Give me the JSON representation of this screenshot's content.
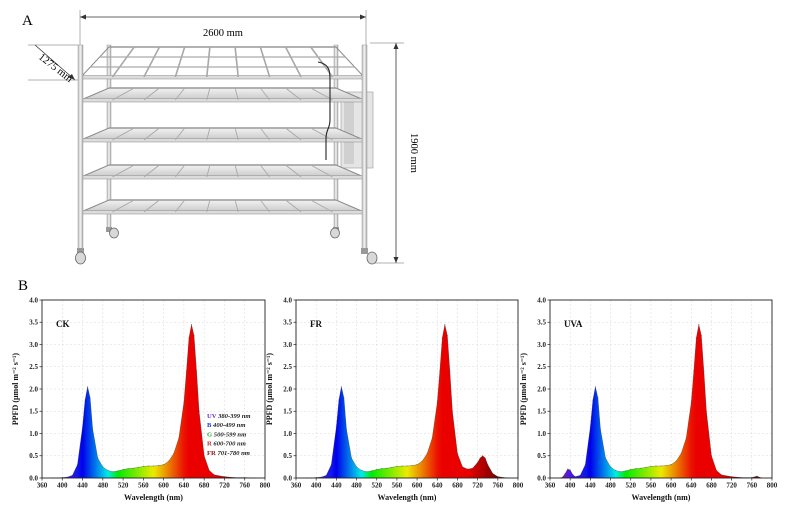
{
  "figure": {
    "panel_a_label": "A",
    "panel_b_label": "B",
    "rack": {
      "width_label": "2600 mm",
      "depth_label": "1275 mm",
      "height_label": "1900 mm"
    }
  },
  "legend": [
    {
      "band": "UV",
      "range": "380-399 nm",
      "color": "#6a2fc4"
    },
    {
      "band": "B",
      "range": "400-499 nm",
      "color": "#1c3fd6"
    },
    {
      "band": "G",
      "range": "500-599 nm",
      "color": "#2ea830"
    },
    {
      "band": "R",
      "range": "600-700 nm",
      "color": "#d42020"
    },
    {
      "band": "FR",
      "range": "701-780 nm",
      "color": "#8a1010"
    }
  ],
  "chart_data": [
    {
      "type": "area",
      "title": "CK",
      "xlabel": "Wavelength (nm)",
      "ylabel": "PPFD (μmol m⁻² s⁻¹)",
      "xlim": [
        360,
        800
      ],
      "ylim": [
        0,
        4.0
      ],
      "xticks": [
        "360",
        "400",
        "440",
        "480",
        "520",
        "560",
        "600",
        "640",
        "680",
        "720",
        "760",
        "800"
      ],
      "yticks": [
        "0.0",
        "0.5",
        "1.0",
        "1.5",
        "2.0",
        "2.5",
        "3.0",
        "3.5",
        "4.0"
      ],
      "x": [
        380,
        390,
        400,
        410,
        420,
        430,
        440,
        445,
        450,
        455,
        460,
        470,
        480,
        490,
        500,
        510,
        520,
        530,
        540,
        550,
        560,
        570,
        580,
        590,
        600,
        610,
        620,
        630,
        640,
        645,
        650,
        655,
        660,
        665,
        670,
        680,
        690,
        700,
        720,
        740,
        760,
        780
      ],
      "y": [
        0.0,
        0.0,
        0.01,
        0.02,
        0.06,
        0.3,
        1.15,
        1.75,
        2.05,
        1.8,
        1.1,
        0.45,
        0.25,
        0.17,
        0.14,
        0.16,
        0.19,
        0.21,
        0.22,
        0.24,
        0.26,
        0.27,
        0.27,
        0.28,
        0.3,
        0.38,
        0.55,
        0.9,
        1.7,
        2.4,
        3.15,
        3.45,
        3.2,
        2.4,
        1.5,
        0.5,
        0.17,
        0.07,
        0.03,
        0.01,
        0.01,
        0.0
      ]
    },
    {
      "type": "area",
      "title": "FR",
      "xlabel": "Wavelength (nm)",
      "ylabel": "PPFD (μmol m⁻² s⁻¹)",
      "xlim": [
        360,
        800
      ],
      "ylim": [
        0,
        4.0
      ],
      "xticks": [
        "360",
        "400",
        "440",
        "480",
        "520",
        "560",
        "600",
        "640",
        "680",
        "720",
        "760",
        "800"
      ],
      "yticks": [
        "0.0",
        "0.5",
        "1.0",
        "1.5",
        "2.0",
        "2.5",
        "3.0",
        "3.5",
        "4.0"
      ],
      "x": [
        380,
        390,
        400,
        410,
        420,
        430,
        440,
        445,
        450,
        455,
        460,
        470,
        480,
        490,
        500,
        510,
        520,
        530,
        540,
        550,
        560,
        570,
        580,
        590,
        600,
        610,
        620,
        630,
        640,
        645,
        650,
        655,
        660,
        665,
        670,
        680,
        690,
        700,
        710,
        720,
        725,
        730,
        735,
        740,
        750,
        760,
        780
      ],
      "y": [
        0.0,
        0.0,
        0.01,
        0.02,
        0.06,
        0.3,
        1.15,
        1.75,
        2.05,
        1.8,
        1.1,
        0.45,
        0.25,
        0.17,
        0.14,
        0.16,
        0.19,
        0.21,
        0.22,
        0.24,
        0.26,
        0.27,
        0.27,
        0.28,
        0.3,
        0.38,
        0.55,
        0.9,
        1.7,
        2.4,
        3.15,
        3.45,
        3.2,
        2.4,
        1.5,
        0.55,
        0.25,
        0.2,
        0.22,
        0.35,
        0.45,
        0.5,
        0.45,
        0.3,
        0.1,
        0.03,
        0.0
      ]
    },
    {
      "type": "area",
      "title": "UVA",
      "xlabel": "Wavelength (nm)",
      "ylabel": "PPFD (μmol m⁻² s⁻¹)",
      "xlim": [
        360,
        800
      ],
      "ylim": [
        0,
        4.0
      ],
      "xticks": [
        "360",
        "400",
        "440",
        "480",
        "520",
        "560",
        "600",
        "640",
        "680",
        "720",
        "760",
        "800"
      ],
      "yticks": [
        "0.0",
        "0.5",
        "1.0",
        "1.5",
        "2.0",
        "2.5",
        "3.0",
        "3.5",
        "4.0"
      ],
      "x": [
        380,
        385,
        390,
        395,
        400,
        405,
        410,
        420,
        430,
        440,
        445,
        450,
        455,
        460,
        470,
        480,
        490,
        500,
        510,
        520,
        530,
        540,
        550,
        560,
        570,
        580,
        590,
        600,
        610,
        620,
        630,
        640,
        645,
        650,
        655,
        660,
        665,
        670,
        680,
        690,
        700,
        720,
        740,
        760,
        770,
        780
      ],
      "y": [
        0.0,
        0.02,
        0.1,
        0.2,
        0.18,
        0.08,
        0.03,
        0.06,
        0.3,
        1.15,
        1.75,
        2.05,
        1.8,
        1.1,
        0.45,
        0.25,
        0.17,
        0.14,
        0.16,
        0.19,
        0.21,
        0.22,
        0.24,
        0.26,
        0.27,
        0.27,
        0.28,
        0.3,
        0.38,
        0.55,
        0.9,
        1.7,
        2.4,
        3.15,
        3.45,
        3.2,
        2.4,
        1.5,
        0.5,
        0.17,
        0.07,
        0.03,
        0.01,
        0.01,
        0.04,
        0.0
      ]
    }
  ]
}
